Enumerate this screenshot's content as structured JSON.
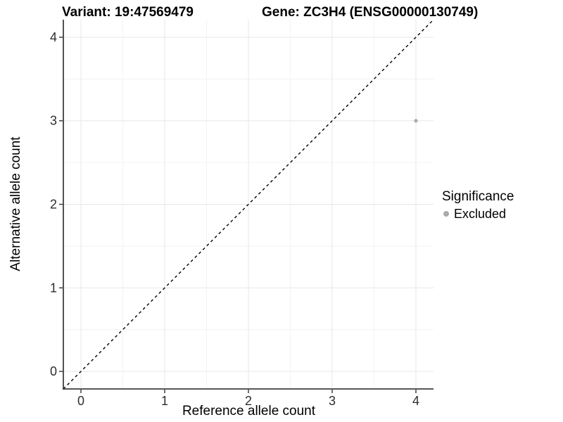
{
  "header": {
    "variant_title": "Variant: 19:47569479",
    "gene_title": "Gene: ZC3H4 (ENSG00000130749)"
  },
  "legend": {
    "title": "Significance",
    "items": [
      {
        "label": "Excluded",
        "color": "#aaaaaa"
      }
    ]
  },
  "chart_data": {
    "type": "scatter",
    "titles": [
      "Variant: 19:47569479",
      "Gene: ZC3H4 (ENSG00000130749)"
    ],
    "xlabel": "Reference allele count",
    "ylabel": "Alternative allele count",
    "xlim": [
      -0.21,
      4.21
    ],
    "ylim": [
      -0.21,
      4.21
    ],
    "x_ticks": [
      0,
      1,
      2,
      3,
      4
    ],
    "y_ticks": [
      0,
      1,
      2,
      3,
      4
    ],
    "x_minor_ticks": [
      0.5,
      1.5,
      2.5,
      3.5
    ],
    "y_minor_ticks": [
      0.5,
      1.5,
      2.5,
      3.5
    ],
    "grid": true,
    "legend_position": "right",
    "series": [
      {
        "name": "Excluded",
        "color": "#aaaaaa",
        "points": [
          {
            "x": 4,
            "y": 3
          }
        ]
      }
    ],
    "reference_line": {
      "type": "identity",
      "slope": 1,
      "intercept": 0,
      "style": "dashed",
      "color": "#000000"
    }
  },
  "style": {
    "background": "#ffffff",
    "grid_major_color": "#e7e7e7",
    "grid_minor_color": "#f3f3f3",
    "axis_line_color": "#3f3f3f",
    "tick_color": "#333333",
    "tick_label_color": "#2e2e2e"
  }
}
